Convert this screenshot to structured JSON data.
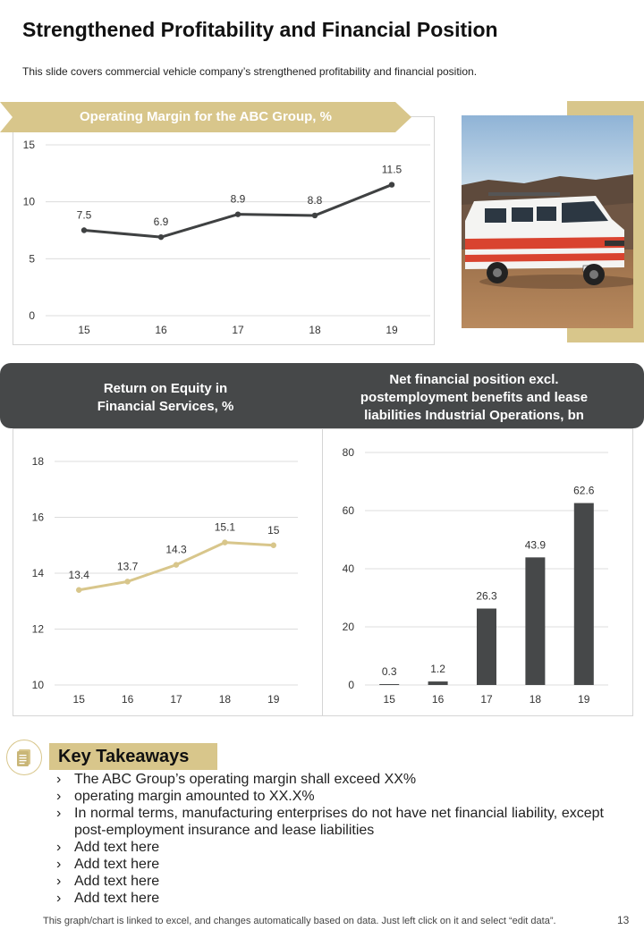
{
  "slide": {
    "title": "Strengthened Profitability and Financial Position",
    "subtitle": "This slide covers commercial vehicle company’s strengthened profitability and financial position.",
    "footer_note": "This graph/chart is linked to excel, and changes automatically based on data. Just left click on it and select “edit data”.",
    "page_number": "13"
  },
  "colors": {
    "gold": "#d8c68b",
    "dark": "#464849",
    "line_dark": "#3f4142",
    "line_gold": "#d8c68b",
    "bar": "#464849"
  },
  "key_takeaways": {
    "label": "Key Takeaways",
    "icon": "document-icon",
    "items": [
      "The ABC Group’s operating margin shall exceed XX%",
      "operating margin amounted to XX.X%",
      "In normal terms, manufacturing enterprises do not have net financial liability, except post-employment insurance and lease liabilities",
      "Add text here",
      "Add text here",
      "Add text here",
      "Add text here"
    ]
  },
  "chart_data": [
    {
      "type": "line",
      "title": "Operating Margin for the ABC Group, %",
      "categories": [
        "15",
        "16",
        "17",
        "18",
        "19"
      ],
      "values": [
        7.5,
        6.9,
        8.9,
        8.8,
        11.5
      ],
      "data_labels": [
        "7.5",
        "6.9",
        "8.9",
        "8.8",
        "11.5"
      ],
      "ylim": [
        0,
        15
      ],
      "yticks": [
        "0",
        "5",
        "10",
        "15"
      ],
      "grid": true,
      "xlabel": "",
      "ylabel": ""
    },
    {
      "type": "line",
      "title": "Return on Equity in Financial Services, %",
      "title_lines": [
        "Return on Equity in",
        "Financial Services, %"
      ],
      "categories": [
        "15",
        "16",
        "17",
        "18",
        "19"
      ],
      "values": [
        13.4,
        13.7,
        14.3,
        15.1,
        15.0
      ],
      "data_labels": [
        "13.4",
        "13.7",
        "14.3",
        "15.1",
        "15"
      ],
      "ylim": [
        10,
        18
      ],
      "yticks": [
        "10",
        "12",
        "14",
        "16",
        "18"
      ],
      "grid": true,
      "xlabel": "",
      "ylabel": ""
    },
    {
      "type": "bar",
      "title": "Net financial position excl. postemployment benefits and lease liabilities Industrial Operations, bn",
      "title_lines": [
        "Net financial position excl.",
        "postemployment benefits and lease",
        "liabilities Industrial Operations,  bn"
      ],
      "categories": [
        "15",
        "16",
        "17",
        "18",
        "19"
      ],
      "values": [
        0.3,
        1.2,
        26.3,
        43.9,
        62.6
      ],
      "data_labels": [
        "0.3",
        "1.2",
        "26.3",
        "43.9",
        "62.6"
      ],
      "ylim": [
        0,
        80
      ],
      "yticks": [
        "0",
        "20",
        "40",
        "60",
        "80"
      ],
      "grid": true,
      "xlabel": "",
      "ylabel": ""
    }
  ]
}
